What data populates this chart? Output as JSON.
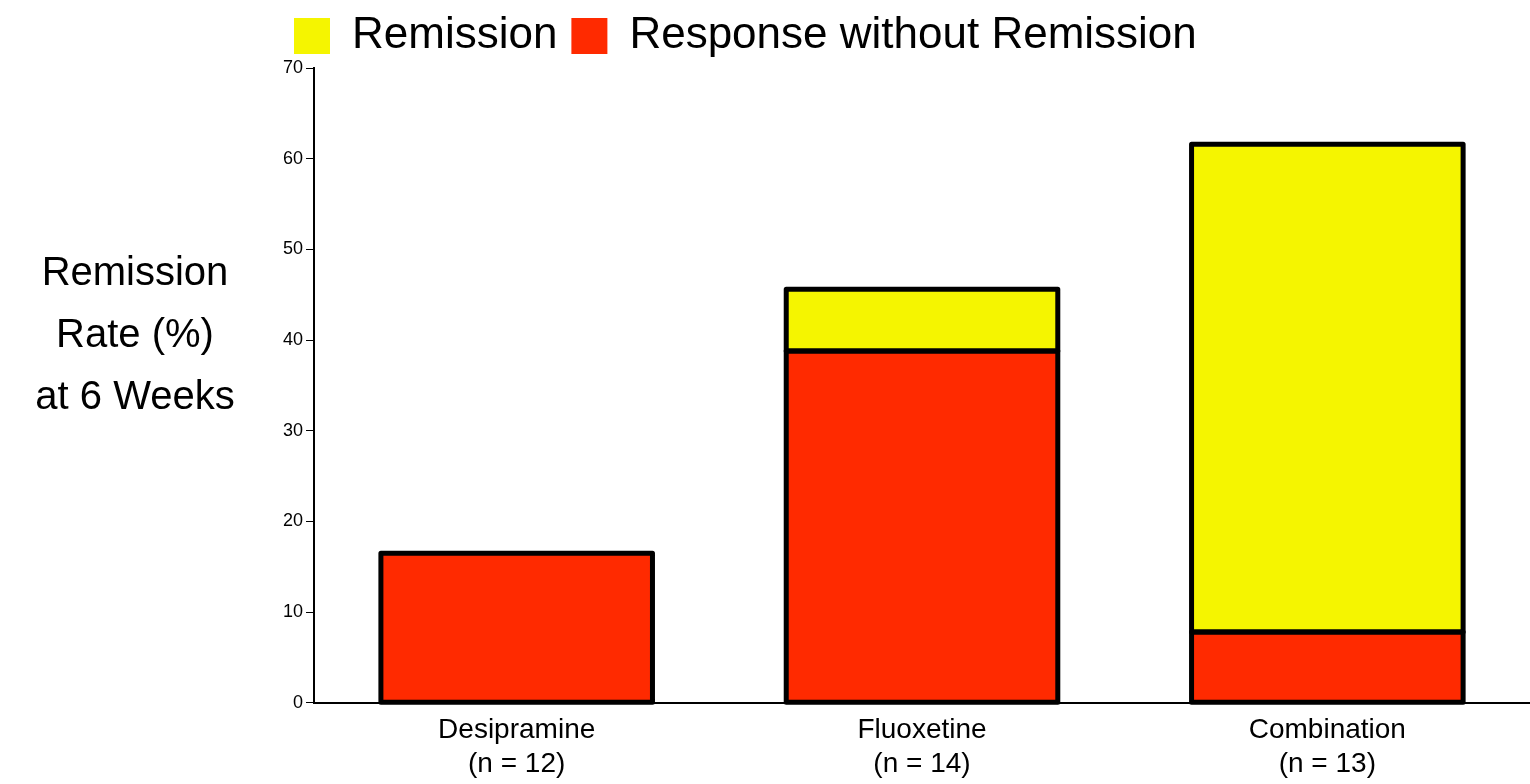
{
  "chart_data": {
    "type": "bar",
    "stacked": true,
    "ylabel": "Remission\nRate (%)\nat 6 Weeks",
    "categories": [
      "Desipramine\n(n = 12)",
      "Fluoxetine\n(n = 14)",
      "Combination\n(n = 13)"
    ],
    "series": [
      {
        "name": "Response without Remission",
        "color": "#ff2a00",
        "values": [
          16.5,
          38.8,
          7.8
        ]
      },
      {
        "name": "Remission",
        "color": "#f5f500",
        "values": [
          null,
          6.8,
          53.8
        ]
      }
    ],
    "ylim": [
      0,
      70
    ],
    "yticks": [
      0,
      10,
      20,
      30,
      40,
      50,
      60,
      70
    ],
    "grid": false,
    "legend": "top left"
  }
}
